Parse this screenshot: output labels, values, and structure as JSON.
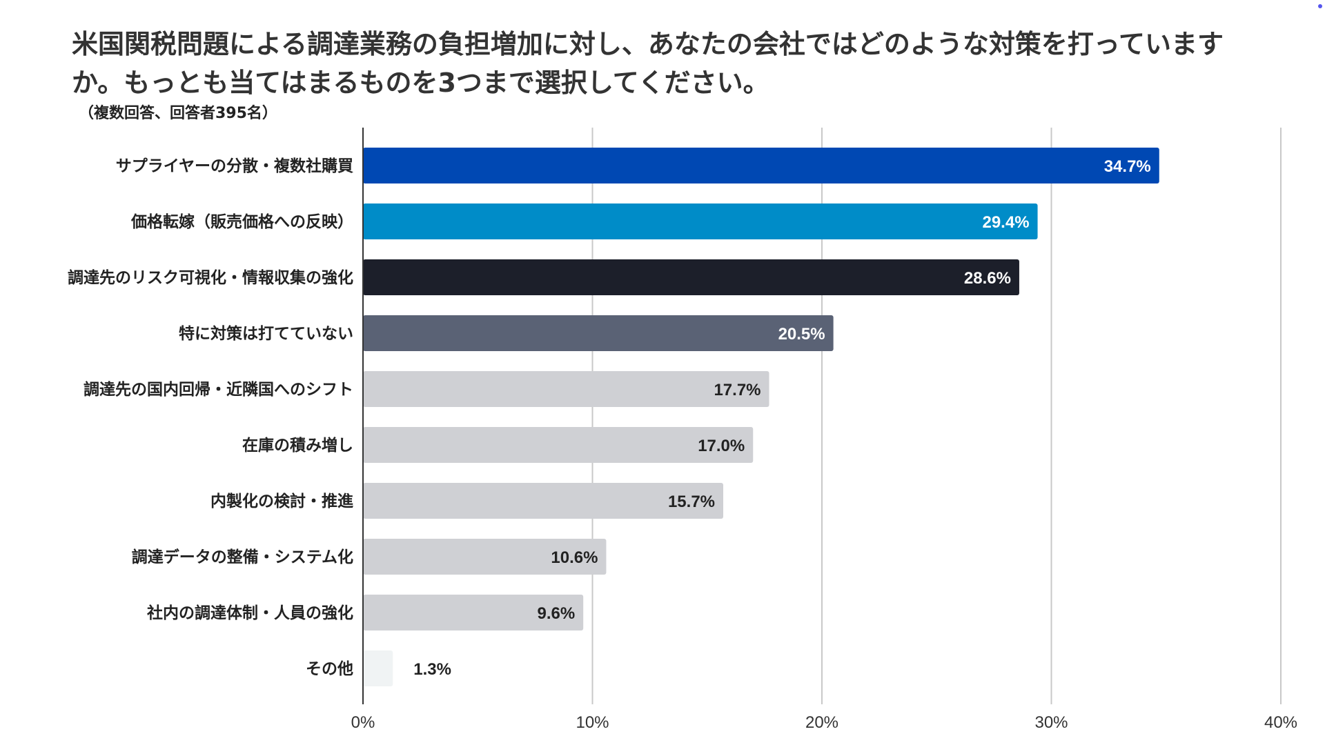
{
  "chart_data": {
    "type": "bar",
    "orientation": "horizontal",
    "title": "米国関税問題による調達業務の負担増加に対し、あなたの会社ではどのような対策を打っていますか。もっとも当てはまるものを3つまで選択してください。",
    "subtitle": "（複数回答、回答者395名）",
    "xlabel": "",
    "ylabel": "",
    "xlim": [
      0,
      40
    ],
    "x_ticks": [
      0,
      10,
      20,
      30,
      40
    ],
    "x_tick_labels": [
      "0%",
      "10%",
      "20%",
      "30%",
      "40%"
    ],
    "grid": true,
    "categories": [
      "サプライヤーの分散・複数社購買",
      "価格転嫁（販売価格への反映）",
      "調達先のリスク可視化・情報収集の強化",
      "特に対策は打てていない",
      "調達先の国内回帰・近隣国へのシフト",
      "在庫の積み増し",
      "内製化の検討・推進",
      "調達データの整備・システム化",
      "社内の調達体制・人員の強化",
      "その他"
    ],
    "values": [
      34.7,
      29.4,
      28.6,
      20.5,
      17.7,
      17.0,
      15.7,
      10.6,
      9.6,
      1.3
    ],
    "value_labels": [
      "34.7%",
      "29.4%",
      "28.6%",
      "20.5%",
      "17.7%",
      "17.0%",
      "15.7%",
      "10.6%",
      "9.6%",
      "1.3%"
    ],
    "bar_colors": [
      "#0048b3",
      "#008cc8",
      "#1c1f2a",
      "#5a6275",
      "#cfd0d4",
      "#cfd0d4",
      "#cfd0d4",
      "#cfd0d4",
      "#cfd0d4",
      "#f0f3f4"
    ],
    "label_colors": [
      "#ffffff",
      "#ffffff",
      "#ffffff",
      "#ffffff",
      "#222222",
      "#222222",
      "#222222",
      "#222222",
      "#222222",
      "#222222"
    ]
  }
}
